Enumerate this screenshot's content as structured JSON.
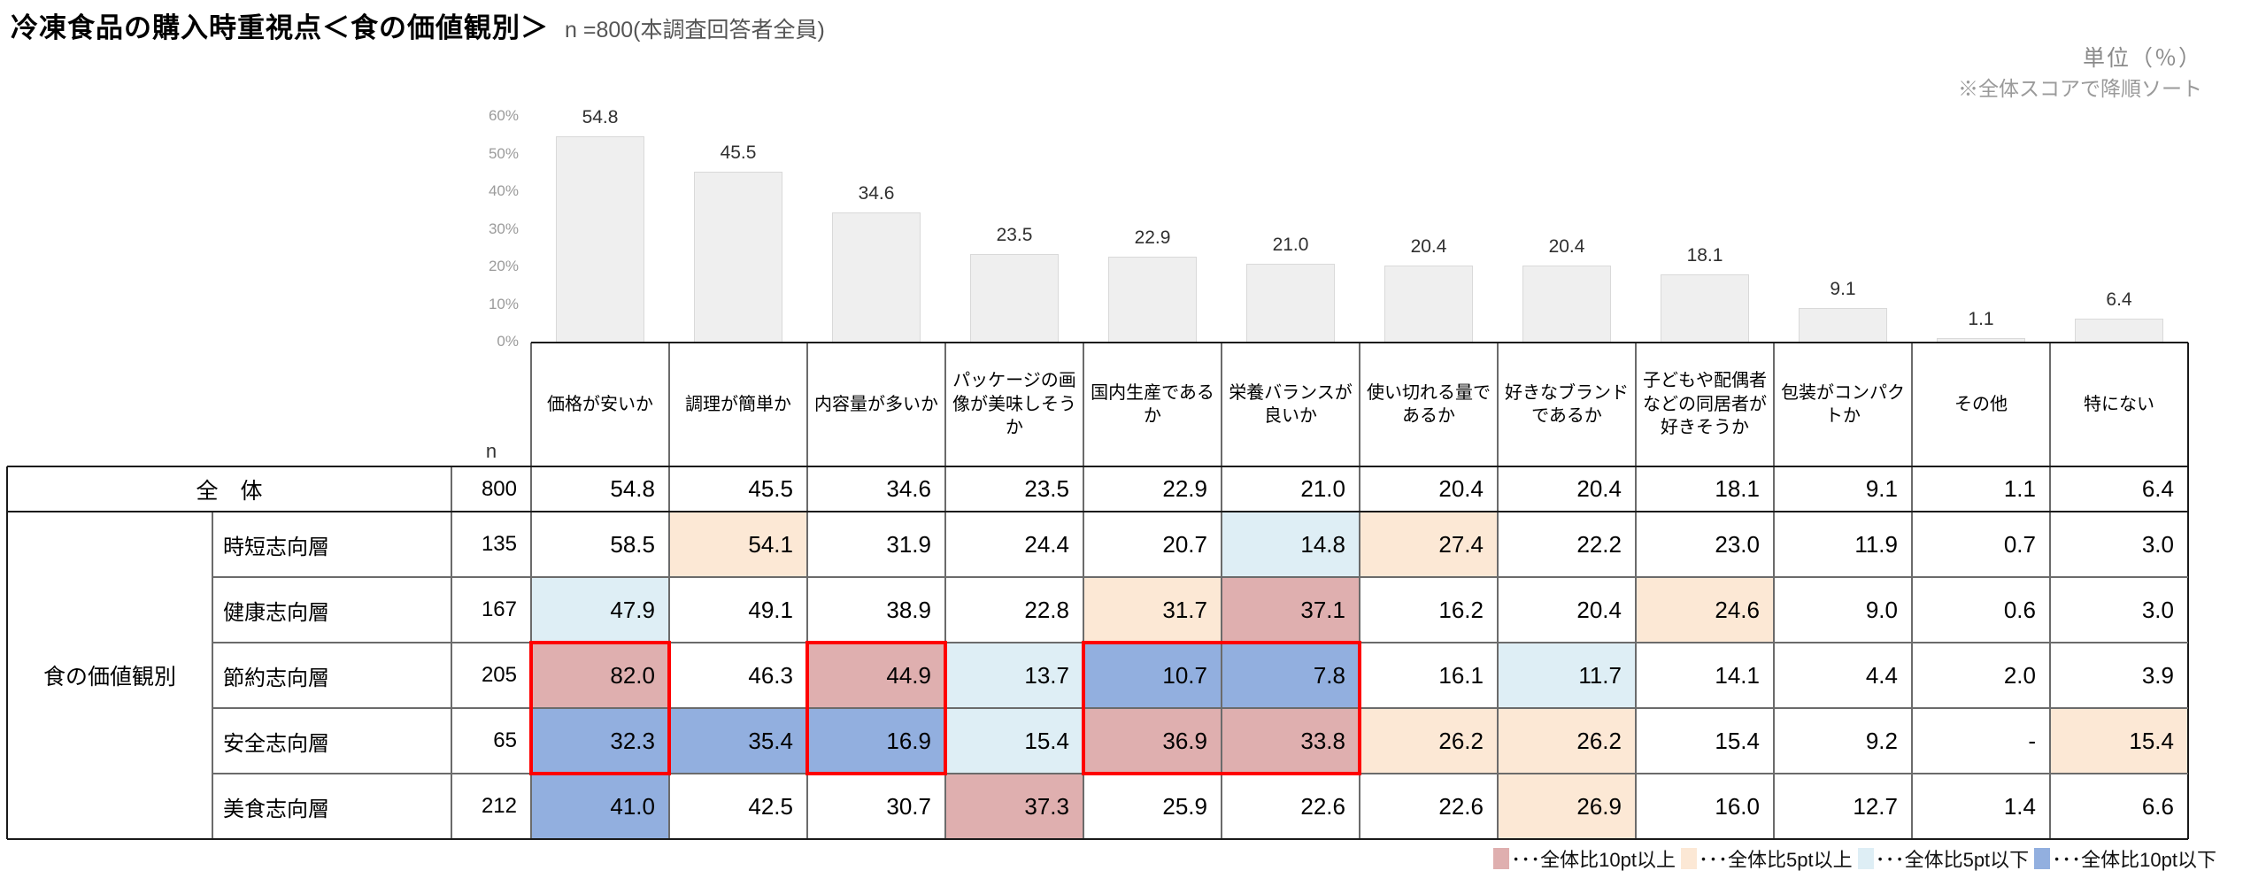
{
  "header": {
    "title": "冷凍食品の購入時重視点＜食の価値観別＞",
    "subtitle": "n =800(本調査回答者全員)",
    "unit_note": "単位（％）",
    "sort_note": "※全体スコアで降順ソート"
  },
  "chart_data": {
    "type": "bar",
    "title": "冷凍食品の購入時重視点＜食の価値観別＞",
    "categories": [
      "価格が安いか",
      "調理が簡単か",
      "内容量が多いか",
      "パッケージの画像が美味しそうか",
      "国内生産であるか",
      "栄養バランスが良いか",
      "使い切れる量であるか",
      "好きなブランドであるか",
      "子どもや配偶者などの同居者が好きそうか",
      "包装がコンパクトか",
      "その他",
      "特にない"
    ],
    "values": [
      54.8,
      45.5,
      34.6,
      23.5,
      22.9,
      21.0,
      20.4,
      20.4,
      18.1,
      9.1,
      1.1,
      6.4
    ],
    "xlabel": "",
    "ylabel": "",
    "ylim": [
      0,
      60
    ],
    "yticks": [
      "0%",
      "10%",
      "20%",
      "30%",
      "40%",
      "50%",
      "60%"
    ],
    "grid": false,
    "legend_position": "none"
  },
  "table": {
    "n_label": "n",
    "group_label": "食の価値観別",
    "total_row": {
      "label": "全　体",
      "n": "800",
      "values": [
        "54.8",
        "45.5",
        "34.6",
        "23.5",
        "22.9",
        "21.0",
        "20.4",
        "20.4",
        "18.1",
        "9.1",
        "1.1",
        "6.4"
      ]
    },
    "rows": [
      {
        "label": "時短志向層",
        "n": "135",
        "values": [
          "58.5",
          "54.1",
          "31.9",
          "24.4",
          "20.7",
          "14.8",
          "27.4",
          "22.2",
          "23.0",
          "11.9",
          "0.7",
          "3.0"
        ],
        "highlights": [
          "",
          "hi5",
          "",
          "",
          "",
          "lo5",
          "hi5",
          "",
          "",
          "",
          "",
          ""
        ]
      },
      {
        "label": "健康志向層",
        "n": "167",
        "values": [
          "47.9",
          "49.1",
          "38.9",
          "22.8",
          "31.7",
          "37.1",
          "16.2",
          "20.4",
          "24.6",
          "9.0",
          "0.6",
          "3.0"
        ],
        "highlights": [
          "lo5",
          "",
          "",
          "",
          "hi5",
          "hi10",
          "",
          "",
          "hi5",
          "",
          "",
          ""
        ]
      },
      {
        "label": "節約志向層",
        "n": "205",
        "values": [
          "82.0",
          "46.3",
          "44.9",
          "13.7",
          "10.7",
          "7.8",
          "16.1",
          "11.7",
          "14.1",
          "4.4",
          "2.0",
          "3.9"
        ],
        "highlights": [
          "hi10",
          "",
          "hi10",
          "lo5",
          "lo10",
          "lo10",
          "",
          "lo5",
          "",
          "",
          "",
          ""
        ]
      },
      {
        "label": "安全志向層",
        "n": "65",
        "values": [
          "32.3",
          "35.4",
          "16.9",
          "15.4",
          "36.9",
          "33.8",
          "26.2",
          "26.2",
          "15.4",
          "9.2",
          "-",
          "15.4"
        ],
        "highlights": [
          "lo10",
          "lo10",
          "lo10",
          "lo5",
          "hi10",
          "hi10",
          "hi5",
          "hi5",
          "",
          "",
          "",
          "hi5"
        ]
      },
      {
        "label": "美食志向層",
        "n": "212",
        "values": [
          "41.0",
          "42.5",
          "30.7",
          "37.3",
          "25.9",
          "22.6",
          "22.6",
          "26.9",
          "16.0",
          "12.7",
          "1.4",
          "6.6"
        ],
        "highlights": [
          "lo10",
          "",
          "",
          "hi10",
          "",
          "",
          "",
          "hi5",
          "",
          "",
          "",
          ""
        ]
      }
    ],
    "red_frames": [
      {
        "columns": [
          0,
          0
        ],
        "rows": [
          2,
          3
        ]
      },
      {
        "columns": [
          2,
          2
        ],
        "rows": [
          2,
          3
        ]
      },
      {
        "columns": [
          4,
          5
        ],
        "rows": [
          2,
          3
        ]
      }
    ]
  },
  "legend": {
    "items": [
      {
        "color_key": "hi10",
        "label": "･･･全体比10pt以上"
      },
      {
        "color_key": "hi5",
        "label": "･･･全体比5pt以上"
      },
      {
        "color_key": "lo5",
        "label": "･･･全体比5pt以下"
      },
      {
        "color_key": "lo10",
        "label": "･･･全体比10pt以下"
      }
    ]
  },
  "colors": {
    "hi10": "#DFAFAF",
    "hi5": "#FCE8D5",
    "lo5": "#DEEEF5",
    "lo10": "#92AFDF",
    "red_frame": "#FF0000",
    "bar_fill": "#EFEFEF",
    "bar_border": "#D9D9D9"
  }
}
